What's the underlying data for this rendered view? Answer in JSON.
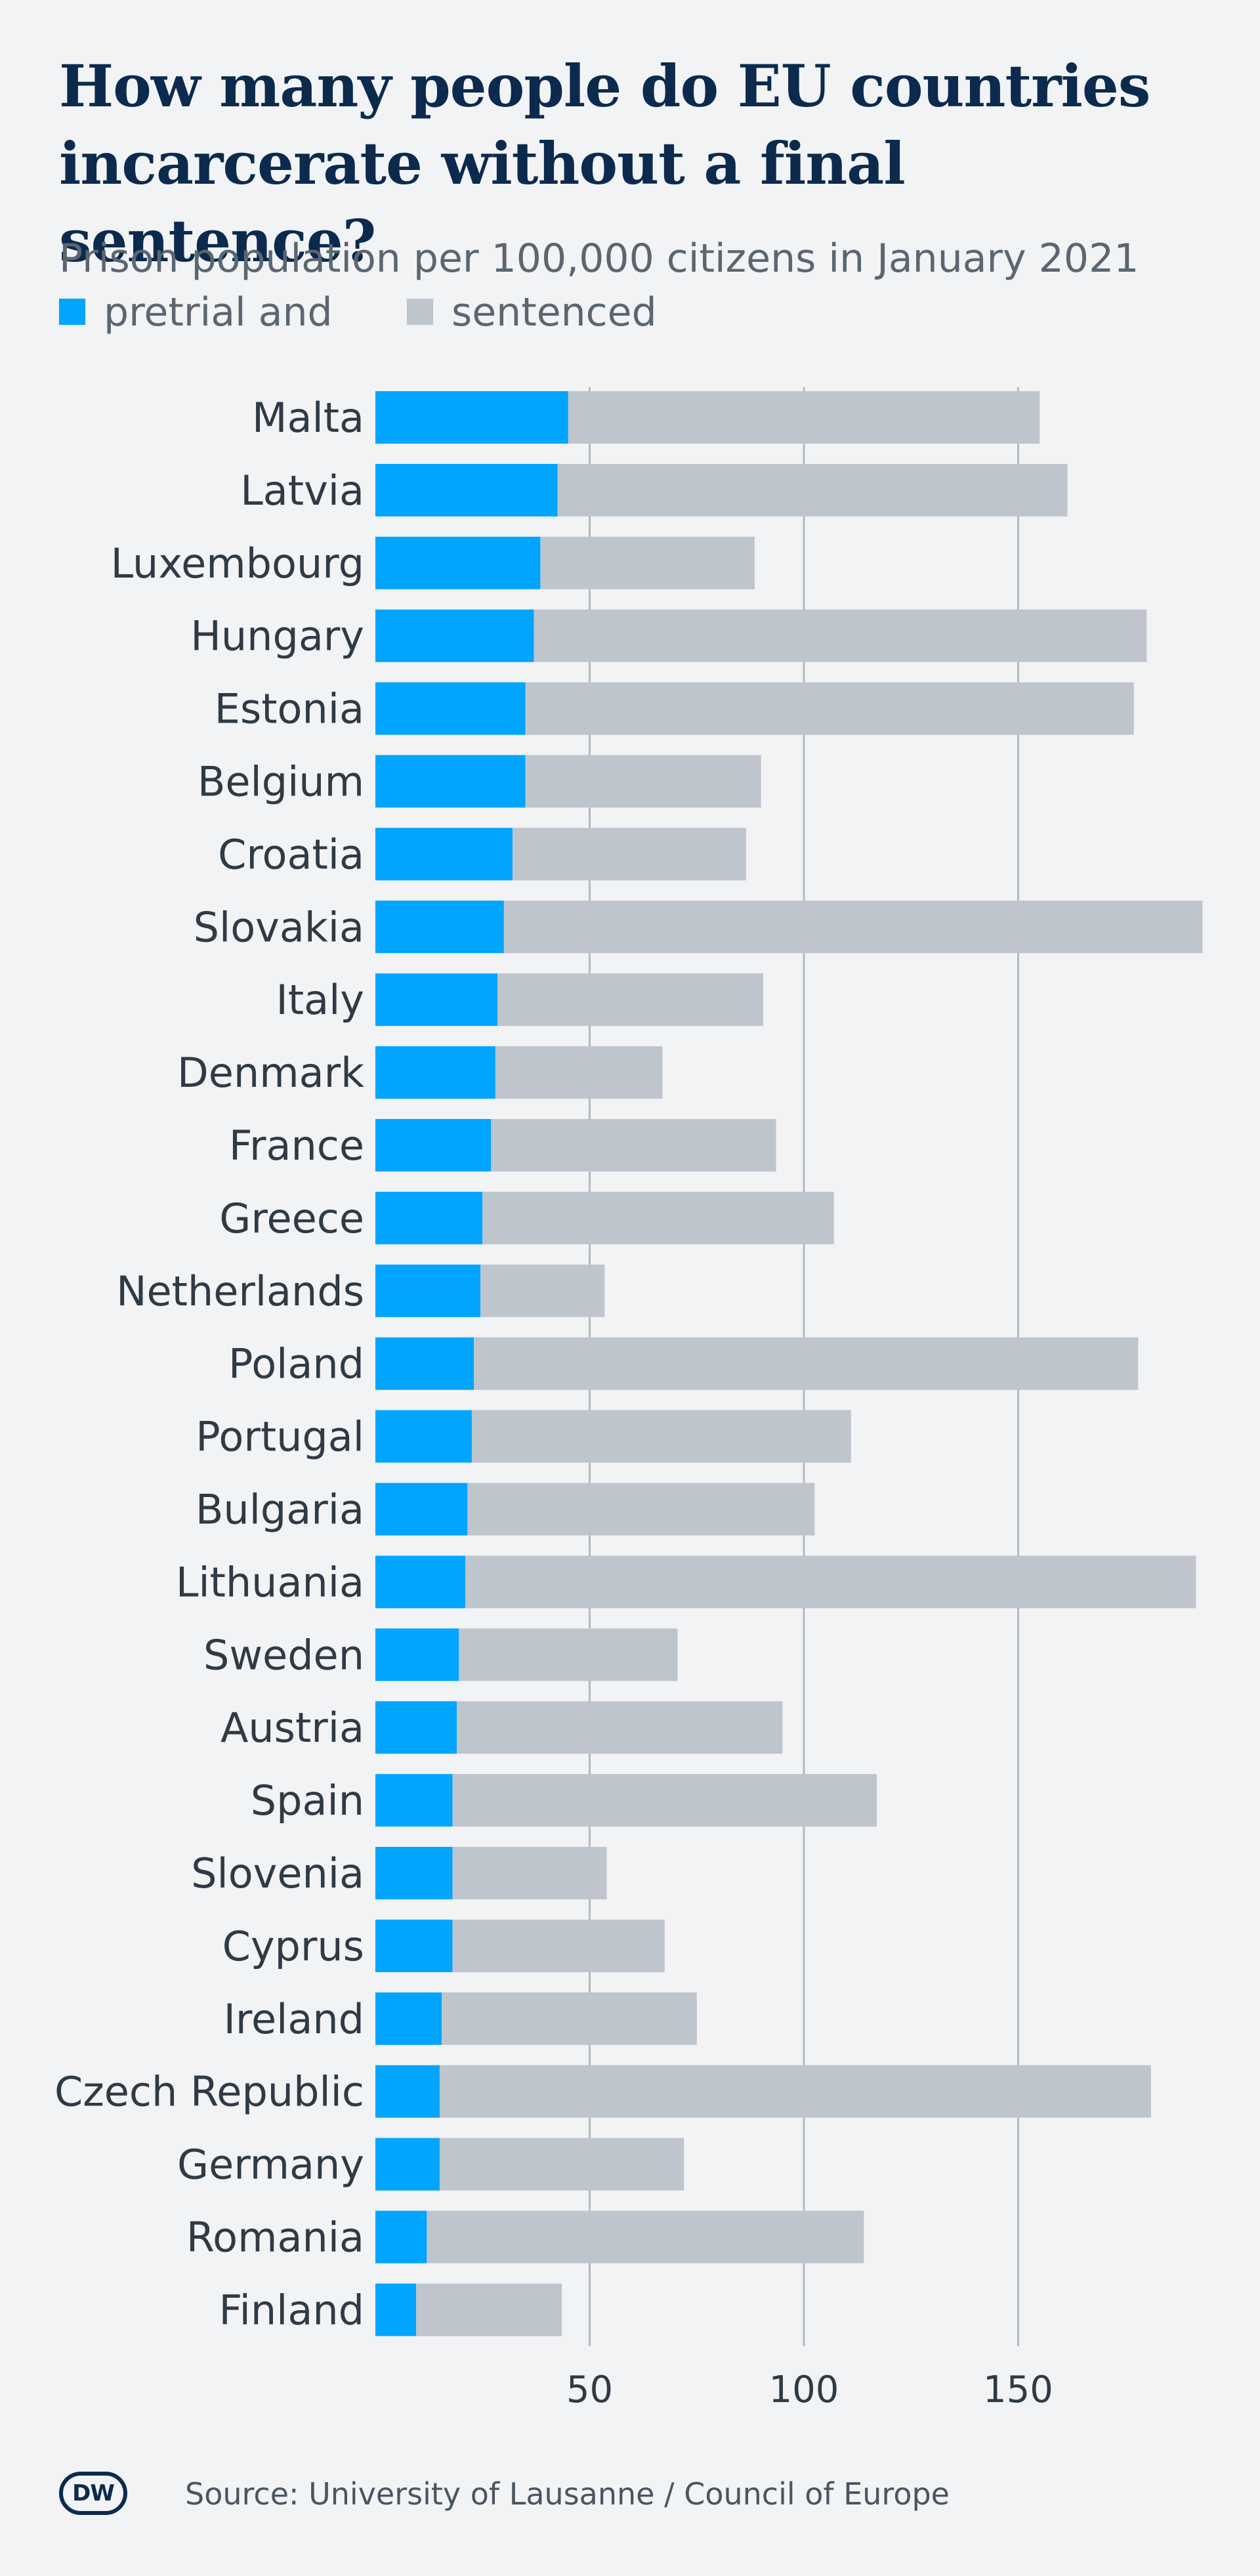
{
  "title": "How many people do EU countries incarcerate without a final sentence?",
  "subtitle": "Prison population per 100,000 citizens in January 2021",
  "legend": [
    {
      "label": "pretrial and",
      "color": "#00a5ff"
    },
    {
      "label": "sentenced",
      "color": "#bec5cc"
    }
  ],
  "source": "Source: University of Lausanne / Council of Europe",
  "logo_text": "DW",
  "chart_data": {
    "type": "bar",
    "orientation": "horizontal",
    "stacked": true,
    "title": "How many people do EU countries incarcerate without a final sentence?",
    "subtitle": "Prison population per 100,000 citizens in January 2021",
    "xlabel": "",
    "ylabel": "",
    "xlim": [
      0,
      193
    ],
    "xticks": [
      50,
      100,
      150
    ],
    "grid": "vertical",
    "legend_position": "top-left",
    "categories": [
      "Malta",
      "Latvia",
      "Luxembourg",
      "Hungary",
      "Estonia",
      "Belgium",
      "Croatia",
      "Slovakia",
      "Italy",
      "Denmark",
      "France",
      "Greece",
      "Netherlands",
      "Poland",
      "Portugal",
      "Bulgaria",
      "Lithuania",
      "Sweden",
      "Austria",
      "Spain",
      "Slovenia",
      "Cyprus",
      "Ireland",
      "Czech Republic",
      "Germany",
      "Romania",
      "Finland"
    ],
    "series": [
      {
        "name": "pretrial and",
        "color": "#00a5ff",
        "values": [
          45,
          42.5,
          38.5,
          37,
          35,
          35,
          32,
          30,
          28.5,
          28,
          27,
          25,
          24.5,
          23,
          22.5,
          21.5,
          21,
          19.5,
          19,
          18,
          18,
          18,
          15.5,
          15,
          15,
          12,
          9.5
        ]
      },
      {
        "name": "sentenced",
        "color": "#bec5cc",
        "values": [
          110,
          119,
          50,
          143,
          142,
          55,
          54.5,
          163,
          62,
          39,
          66.5,
          82,
          29,
          155,
          88.5,
          81,
          170.5,
          51,
          76,
          99,
          36,
          49.5,
          59.5,
          166,
          57,
          102,
          34
        ]
      }
    ]
  }
}
